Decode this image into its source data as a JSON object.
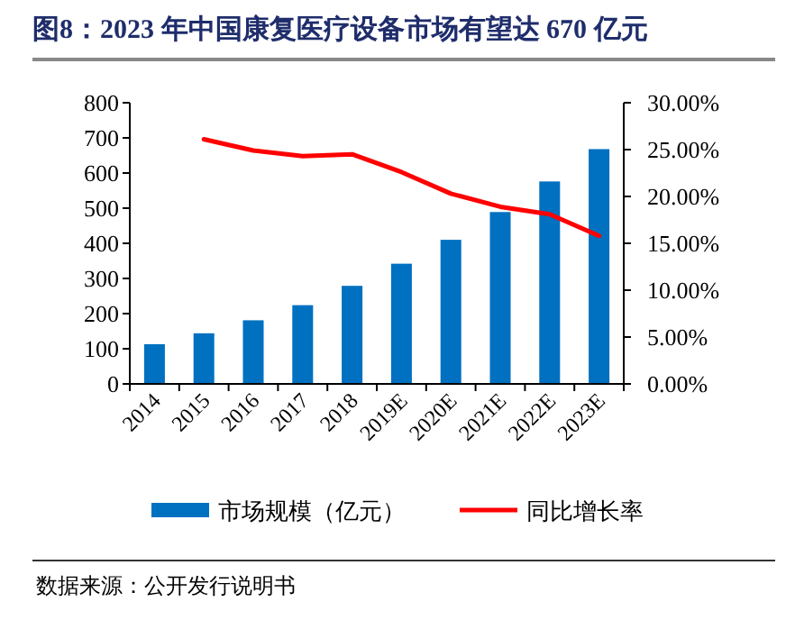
{
  "chart_data": {
    "type": "bar",
    "title": "图8：2023 年中国康复医疗设备市场有望达 670 亿元",
    "categories": [
      "2014",
      "2015",
      "2016",
      "2017",
      "2018",
      "2019E",
      "2020E",
      "2021E",
      "2022E",
      "2023E"
    ],
    "series": [
      {
        "name": "市场规模（亿元）",
        "color": "#0070c0",
        "values": [
          113,
          144,
          181,
          224,
          279,
          342,
          410,
          489,
          576,
          668
        ]
      },
      {
        "name": "同比增长率",
        "type": "line",
        "axis": "y2",
        "color": "#ff0000",
        "values": [
          null,
          26.1,
          24.9,
          24.3,
          24.5,
          22.6,
          20.3,
          18.9,
          18.1,
          15.8
        ]
      }
    ],
    "ylim": [
      0,
      800
    ],
    "yticks": [
      0,
      100,
      200,
      300,
      400,
      500,
      600,
      700,
      800
    ],
    "y2lim": [
      0,
      30
    ],
    "y2ticks": [
      {
        "value": 0,
        "label": "0.00%"
      },
      {
        "value": 5,
        "label": "5.00%"
      },
      {
        "value": 10,
        "label": "10.00%"
      },
      {
        "value": 15,
        "label": "15.00%"
      },
      {
        "value": 20,
        "label": "20.00%"
      },
      {
        "value": 25,
        "label": "25.00%"
      },
      {
        "value": 30,
        "label": "30.00%"
      }
    ],
    "legend": "bottom",
    "grid": false,
    "annotations": [
      "数据来源：公开发行说明书"
    ]
  }
}
